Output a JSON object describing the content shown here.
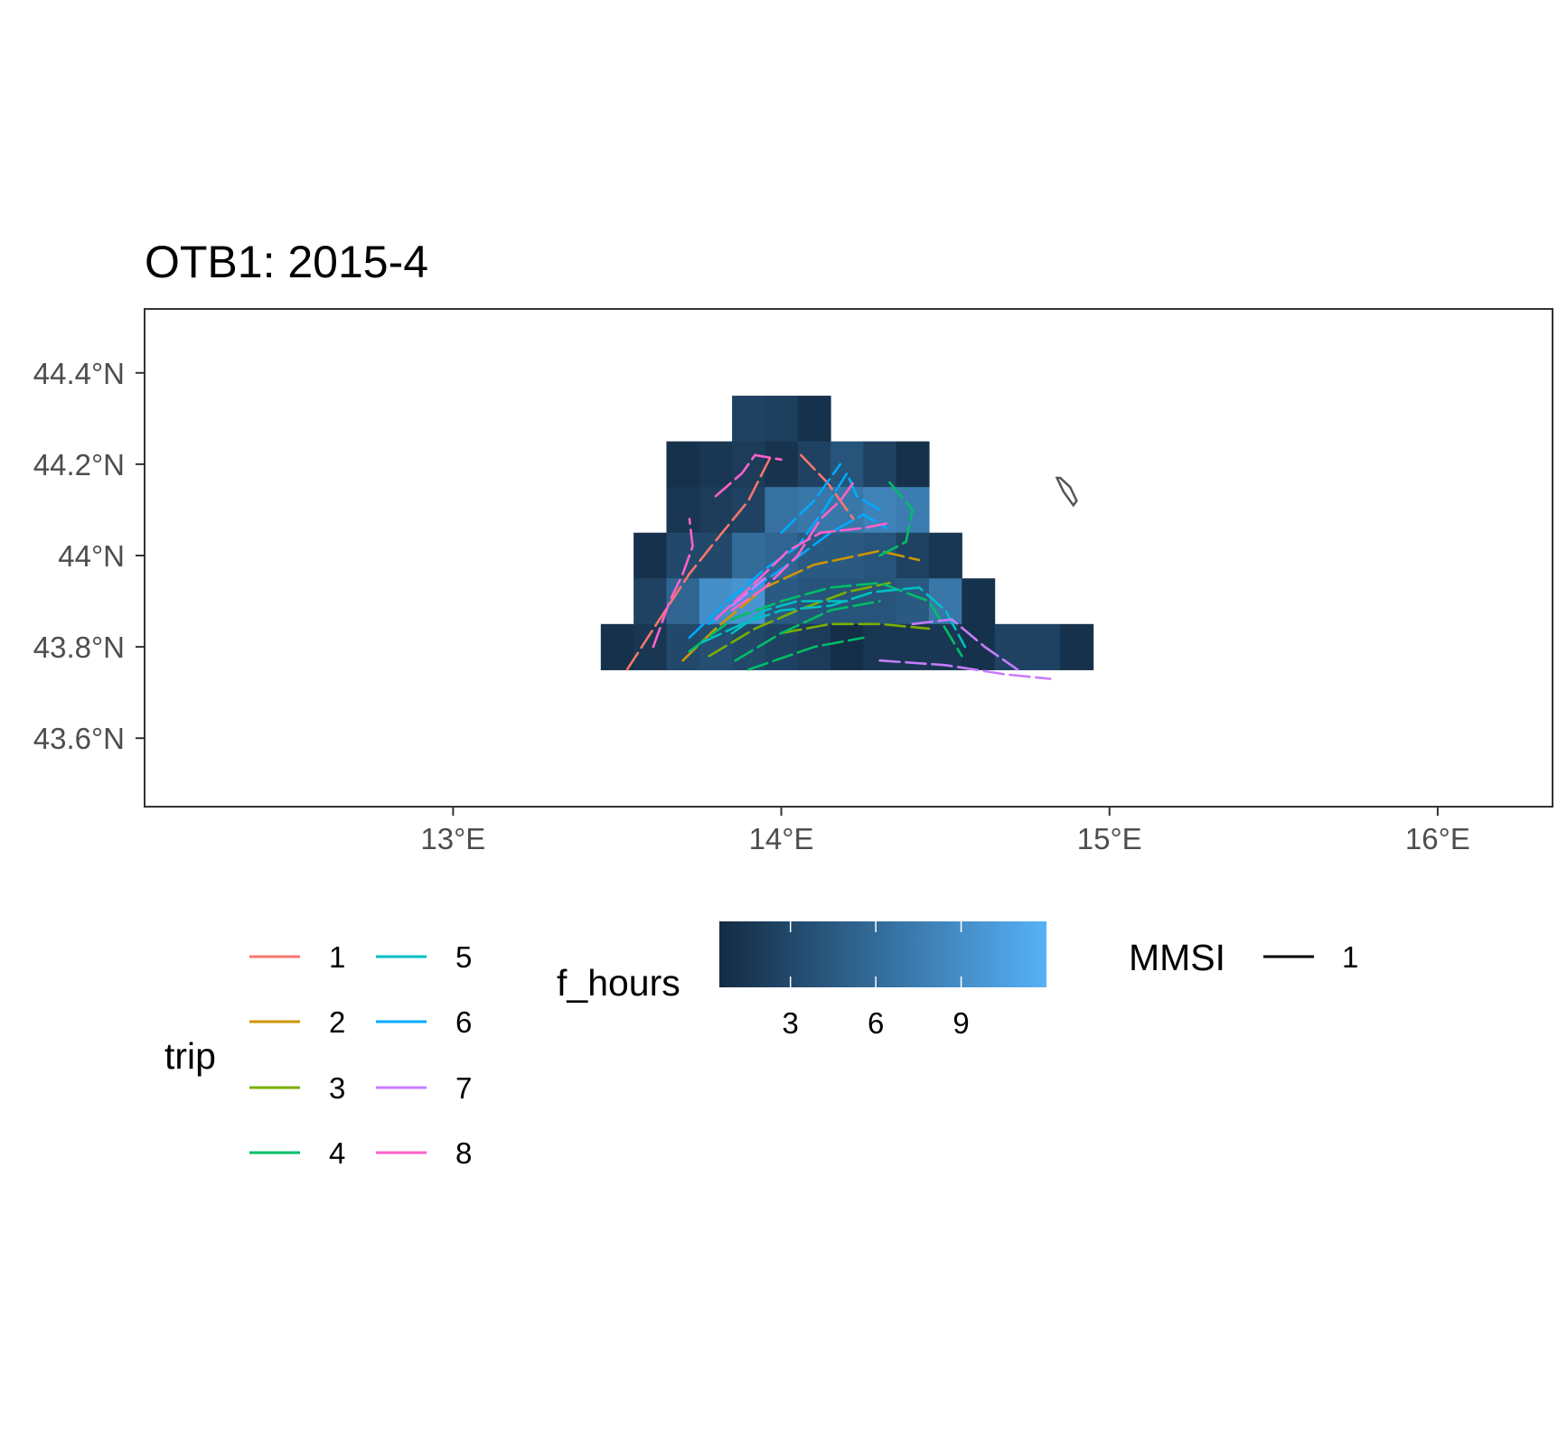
{
  "chart_data": {
    "type": "heatmap",
    "title": "OTB1: 2015-4",
    "xlabel": "",
    "ylabel": "",
    "xlim": [
      12.06,
      16.35
    ],
    "ylim": [
      43.45,
      44.54
    ],
    "x_ticks": [
      {
        "value": 13,
        "label": "13°E"
      },
      {
        "value": 14,
        "label": "14°E"
      },
      {
        "value": 15,
        "label": "15°E"
      },
      {
        "value": 16,
        "label": "16°E"
      }
    ],
    "y_ticks": [
      {
        "value": 43.6,
        "label": "43.6°N"
      },
      {
        "value": 43.8,
        "label": "43.8°N"
      },
      {
        "value": 44.0,
        "label": "44°N"
      },
      {
        "value": 44.2,
        "label": "44.2°N"
      },
      {
        "value": 44.4,
        "label": "44.4°N"
      }
    ],
    "grid": false,
    "cell_size": {
      "dx": 0.1,
      "dy": 0.1
    },
    "fill_scale": {
      "name": "f_hours",
      "min": 0.5,
      "max": 12.0,
      "low_color": "#132B43",
      "high_color": "#56B1F7",
      "ticks": [
        3,
        6,
        9
      ]
    },
    "cells": [
      {
        "x": 13.9,
        "y": 44.3,
        "v": 2.5
      },
      {
        "x": 14.0,
        "y": 44.3,
        "v": 2.2
      },
      {
        "x": 14.1,
        "y": 44.3,
        "v": 1.0
      },
      {
        "x": 13.7,
        "y": 44.2,
        "v": 1.0
      },
      {
        "x": 13.8,
        "y": 44.2,
        "v": 1.5
      },
      {
        "x": 13.9,
        "y": 44.2,
        "v": 2.0
      },
      {
        "x": 14.0,
        "y": 44.2,
        "v": 1.2
      },
      {
        "x": 14.1,
        "y": 44.2,
        "v": 2.5
      },
      {
        "x": 14.2,
        "y": 44.2,
        "v": 4.0
      },
      {
        "x": 14.3,
        "y": 44.2,
        "v": 2.5
      },
      {
        "x": 14.4,
        "y": 44.2,
        "v": 1.0
      },
      {
        "x": 13.7,
        "y": 44.1,
        "v": 1.5
      },
      {
        "x": 13.8,
        "y": 44.1,
        "v": 2.0
      },
      {
        "x": 13.9,
        "y": 44.1,
        "v": 2.5
      },
      {
        "x": 14.0,
        "y": 44.1,
        "v": 6.5
      },
      {
        "x": 14.1,
        "y": 44.1,
        "v": 7.0
      },
      {
        "x": 14.2,
        "y": 44.1,
        "v": 7.0
      },
      {
        "x": 14.3,
        "y": 44.1,
        "v": 8.0
      },
      {
        "x": 14.4,
        "y": 44.1,
        "v": 7.5
      },
      {
        "x": 13.6,
        "y": 44.0,
        "v": 1.0
      },
      {
        "x": 13.7,
        "y": 44.0,
        "v": 3.0
      },
      {
        "x": 13.8,
        "y": 44.0,
        "v": 3.0
      },
      {
        "x": 13.9,
        "y": 44.0,
        "v": 6.0
      },
      {
        "x": 14.0,
        "y": 44.0,
        "v": 5.5
      },
      {
        "x": 14.1,
        "y": 44.0,
        "v": 4.5
      },
      {
        "x": 14.2,
        "y": 44.0,
        "v": 4.5
      },
      {
        "x": 14.3,
        "y": 44.0,
        "v": 4.0
      },
      {
        "x": 14.4,
        "y": 44.0,
        "v": 2.5
      },
      {
        "x": 14.5,
        "y": 44.0,
        "v": 1.5
      },
      {
        "x": 13.6,
        "y": 43.9,
        "v": 2.5
      },
      {
        "x": 13.7,
        "y": 43.9,
        "v": 5.5
      },
      {
        "x": 13.8,
        "y": 43.9,
        "v": 9.0
      },
      {
        "x": 13.9,
        "y": 43.9,
        "v": 9.5
      },
      {
        "x": 14.0,
        "y": 43.9,
        "v": 4.5
      },
      {
        "x": 14.1,
        "y": 43.9,
        "v": 4.0
      },
      {
        "x": 14.2,
        "y": 43.9,
        "v": 4.0
      },
      {
        "x": 14.3,
        "y": 43.9,
        "v": 4.0
      },
      {
        "x": 14.4,
        "y": 43.9,
        "v": 4.5
      },
      {
        "x": 14.5,
        "y": 43.9,
        "v": 7.0
      },
      {
        "x": 14.6,
        "y": 43.9,
        "v": 1.0
      },
      {
        "x": 13.5,
        "y": 43.8,
        "v": 1.0
      },
      {
        "x": 13.6,
        "y": 43.8,
        "v": 1.5
      },
      {
        "x": 13.7,
        "y": 43.8,
        "v": 3.0
      },
      {
        "x": 13.8,
        "y": 43.8,
        "v": 3.5
      },
      {
        "x": 13.9,
        "y": 43.8,
        "v": 3.0
      },
      {
        "x": 14.0,
        "y": 43.8,
        "v": 2.5
      },
      {
        "x": 14.1,
        "y": 43.8,
        "v": 2.0
      },
      {
        "x": 14.2,
        "y": 43.8,
        "v": 0.8
      },
      {
        "x": 14.3,
        "y": 43.8,
        "v": 1.5
      },
      {
        "x": 14.4,
        "y": 43.8,
        "v": 1.5
      },
      {
        "x": 14.5,
        "y": 43.8,
        "v": 1.5
      },
      {
        "x": 14.6,
        "y": 43.8,
        "v": 1.0
      },
      {
        "x": 14.7,
        "y": 43.8,
        "v": 2.5
      },
      {
        "x": 14.8,
        "y": 43.8,
        "v": 2.5
      },
      {
        "x": 14.9,
        "y": 43.8,
        "v": 1.0
      }
    ],
    "series": [
      {
        "name": "1",
        "color": "#F8766D",
        "paths": [
          [
            [
              13.53,
              43.75
            ],
            [
              13.62,
              43.85
            ],
            [
              13.72,
              43.96
            ],
            [
              13.82,
              44.05
            ],
            [
              13.9,
              44.12
            ],
            [
              13.97,
              44.22
            ]
          ],
          [
            [
              14.06,
              44.22
            ],
            [
              14.14,
              44.16
            ],
            [
              14.22,
              44.08
            ]
          ]
        ]
      },
      {
        "name": "2",
        "color": "#CD9600",
        "paths": [
          [
            [
              13.7,
              43.77
            ],
            [
              13.8,
              43.84
            ],
            [
              13.95,
              43.93
            ],
            [
              14.1,
              43.98
            ],
            [
              14.3,
              44.01
            ],
            [
              14.42,
              43.99
            ]
          ]
        ]
      },
      {
        "name": "3",
        "color": "#7CAE00",
        "paths": [
          [
            [
              13.78,
              43.78
            ],
            [
              13.92,
              43.84
            ],
            [
              14.05,
              43.88
            ],
            [
              14.2,
              43.92
            ],
            [
              14.33,
              43.94
            ]
          ],
          [
            [
              14.0,
              43.83
            ],
            [
              14.15,
              43.85
            ],
            [
              14.3,
              43.85
            ],
            [
              14.45,
              43.84
            ]
          ]
        ]
      },
      {
        "name": "4",
        "color": "#00BE67",
        "paths": [
          [
            [
              13.72,
              43.79
            ],
            [
              13.85,
              43.86
            ],
            [
              14.0,
              43.9
            ],
            [
              14.15,
              43.93
            ],
            [
              14.3,
              43.94
            ],
            [
              14.45,
              43.9
            ],
            [
              14.55,
              43.78
            ]
          ],
          [
            [
              13.86,
              43.77
            ],
            [
              14.0,
              43.83
            ],
            [
              14.15,
              43.88
            ],
            [
              14.3,
              43.9
            ]
          ],
          [
            [
              14.3,
              44.0
            ],
            [
              14.38,
              44.03
            ],
            [
              14.4,
              44.1
            ],
            [
              14.33,
              44.16
            ]
          ],
          [
            [
              13.9,
              43.75
            ],
            [
              14.1,
              43.8
            ],
            [
              14.25,
              43.82
            ]
          ]
        ]
      },
      {
        "name": "5",
        "color": "#00BFC4",
        "paths": [
          [
            [
              13.76,
              43.81
            ],
            [
              13.88,
              43.85
            ],
            [
              14.0,
              43.88
            ],
            [
              14.15,
              43.89
            ],
            [
              14.28,
              43.92
            ],
            [
              14.42,
              43.93
            ],
            [
              14.5,
              43.88
            ],
            [
              14.56,
              43.8
            ]
          ],
          [
            [
              13.85,
              43.83
            ],
            [
              13.95,
              43.88
            ],
            [
              14.05,
              43.9
            ],
            [
              14.2,
              43.9
            ]
          ]
        ]
      },
      {
        "name": "6",
        "color": "#00A9FF",
        "paths": [
          [
            [
              13.72,
              43.82
            ],
            [
              13.82,
              43.89
            ],
            [
              13.95,
              43.97
            ],
            [
              14.05,
              44.02
            ],
            [
              14.13,
              44.1
            ],
            [
              14.2,
              44.18
            ],
            [
              14.23,
              44.13
            ],
            [
              14.3,
              44.1
            ]
          ],
          [
            [
              13.78,
              43.85
            ],
            [
              13.9,
              43.92
            ],
            [
              14.0,
              43.97
            ],
            [
              14.15,
              44.05
            ],
            [
              14.25,
              44.09
            ],
            [
              14.32,
              44.06
            ]
          ],
          [
            [
              14.0,
              44.05
            ],
            [
              14.1,
              44.12
            ],
            [
              14.18,
              44.2
            ]
          ]
        ]
      },
      {
        "name": "7",
        "color": "#C77CFF",
        "paths": [
          [
            [
              14.3,
              43.77
            ],
            [
              14.5,
              43.76
            ],
            [
              14.68,
              43.74
            ],
            [
              14.82,
              43.73
            ]
          ],
          [
            [
              14.4,
              43.85
            ],
            [
              14.52,
              43.86
            ],
            [
              14.62,
              43.8
            ],
            [
              14.72,
              43.75
            ]
          ],
          [
            [
              13.85,
              43.89
            ],
            [
              13.95,
              43.95
            ]
          ]
        ]
      },
      {
        "name": "8",
        "color": "#FF61CC",
        "paths": [
          [
            [
              13.61,
              43.8
            ],
            [
              13.66,
              43.9
            ],
            [
              13.7,
              43.96
            ],
            [
              13.73,
              44.02
            ],
            [
              13.72,
              44.08
            ]
          ],
          [
            [
              13.8,
              43.86
            ],
            [
              13.92,
              43.94
            ],
            [
              14.02,
              44.01
            ],
            [
              14.12,
              44.05
            ],
            [
              14.25,
              44.06
            ],
            [
              14.32,
              44.07
            ]
          ],
          [
            [
              13.8,
              44.13
            ],
            [
              13.88,
              44.18
            ],
            [
              13.92,
              44.22
            ],
            [
              14.0,
              44.21
            ]
          ],
          [
            [
              13.85,
              43.88
            ],
            [
              13.95,
              43.93
            ],
            [
              14.05,
              44.0
            ],
            [
              14.12,
              44.08
            ],
            [
              14.18,
              44.12
            ],
            [
              14.22,
              44.16
            ]
          ]
        ]
      }
    ],
    "landmark_polygon": [
      [
        14.85,
        44.17
      ],
      [
        14.88,
        44.15
      ],
      [
        14.9,
        44.12
      ],
      [
        14.89,
        44.11
      ],
      [
        14.86,
        44.14
      ],
      [
        14.84,
        44.17
      ]
    ]
  },
  "legend": {
    "trip_title": "trip",
    "fill_title": "f_hours",
    "mmsi_title": "MMSI",
    "mmsi_label": "1",
    "fill_tick_labels": [
      "3",
      "6",
      "9"
    ]
  }
}
